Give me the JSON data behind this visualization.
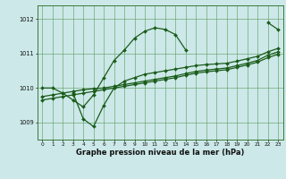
{
  "title": "Graphe pression niveau de la mer (hPa)",
  "bg_color": "#cce8e8",
  "grid_color": "#5a9a5a",
  "line_color": "#1a5c1a",
  "x_min": -0.5,
  "x_max": 23.5,
  "y_min": 1008.5,
  "y_max": 1012.4,
  "y_ticks": [
    1009,
    1010,
    1011,
    1012
  ],
  "x_ticks": [
    0,
    1,
    2,
    3,
    4,
    5,
    6,
    7,
    8,
    9,
    10,
    11,
    12,
    13,
    14,
    15,
    16,
    17,
    18,
    19,
    20,
    21,
    22,
    23
  ],
  "series": [
    {
      "segments": [
        {
          "x": [
            0,
            1,
            2,
            3,
            4,
            5,
            6,
            7,
            8,
            9,
            10,
            11,
            12,
            13,
            14
          ],
          "y": [
            1010.0,
            1010.0,
            1009.85,
            1009.65,
            1009.45,
            1009.8,
            1010.3,
            1010.8,
            1011.1,
            1011.45,
            1011.65,
            1011.75,
            1011.7,
            1011.55,
            1011.1
          ]
        },
        {
          "x": [
            22,
            23
          ],
          "y": [
            1011.9,
            1011.7
          ]
        }
      ]
    },
    {
      "segments": [
        {
          "x": [
            3,
            4,
            5,
            6,
            7,
            8,
            9,
            10,
            11,
            12,
            13,
            14,
            15,
            16,
            17,
            18,
            19,
            20,
            21,
            22,
            23
          ],
          "y": [
            1009.85,
            1009.1,
            1008.88,
            1009.5,
            1010.0,
            1010.2,
            1010.3,
            1010.4,
            1010.45,
            1010.5,
            1010.55,
            1010.6,
            1010.65,
            1010.68,
            1010.7,
            1010.72,
            1010.78,
            1010.85,
            1010.92,
            1011.05,
            1011.15
          ]
        }
      ]
    },
    {
      "segments": [
        {
          "x": [
            0,
            1,
            2,
            3,
            4,
            5,
            6,
            7,
            8,
            9,
            10,
            11,
            12,
            13,
            14,
            15,
            16,
            17,
            18,
            19,
            20,
            21,
            22,
            23
          ],
          "y": [
            1009.75,
            1009.8,
            1009.85,
            1009.9,
            1009.95,
            1009.98,
            1010.0,
            1010.05,
            1010.1,
            1010.15,
            1010.2,
            1010.25,
            1010.3,
            1010.35,
            1010.42,
            1010.48,
            1010.52,
            1010.55,
            1010.58,
            1010.65,
            1010.72,
            1010.8,
            1010.95,
            1011.05
          ]
        }
      ]
    },
    {
      "segments": [
        {
          "x": [
            0,
            1,
            2,
            3,
            4,
            5,
            6,
            7,
            8,
            9,
            10,
            11,
            12,
            13,
            14,
            15,
            16,
            17,
            18,
            19,
            20,
            21,
            22,
            23
          ],
          "y": [
            1009.65,
            1009.7,
            1009.75,
            1009.8,
            1009.85,
            1009.9,
            1009.95,
            1010.0,
            1010.05,
            1010.1,
            1010.15,
            1010.2,
            1010.25,
            1010.3,
            1010.37,
            1010.43,
            1010.47,
            1010.5,
            1010.53,
            1010.6,
            1010.67,
            1010.75,
            1010.88,
            1010.98
          ]
        }
      ]
    }
  ]
}
